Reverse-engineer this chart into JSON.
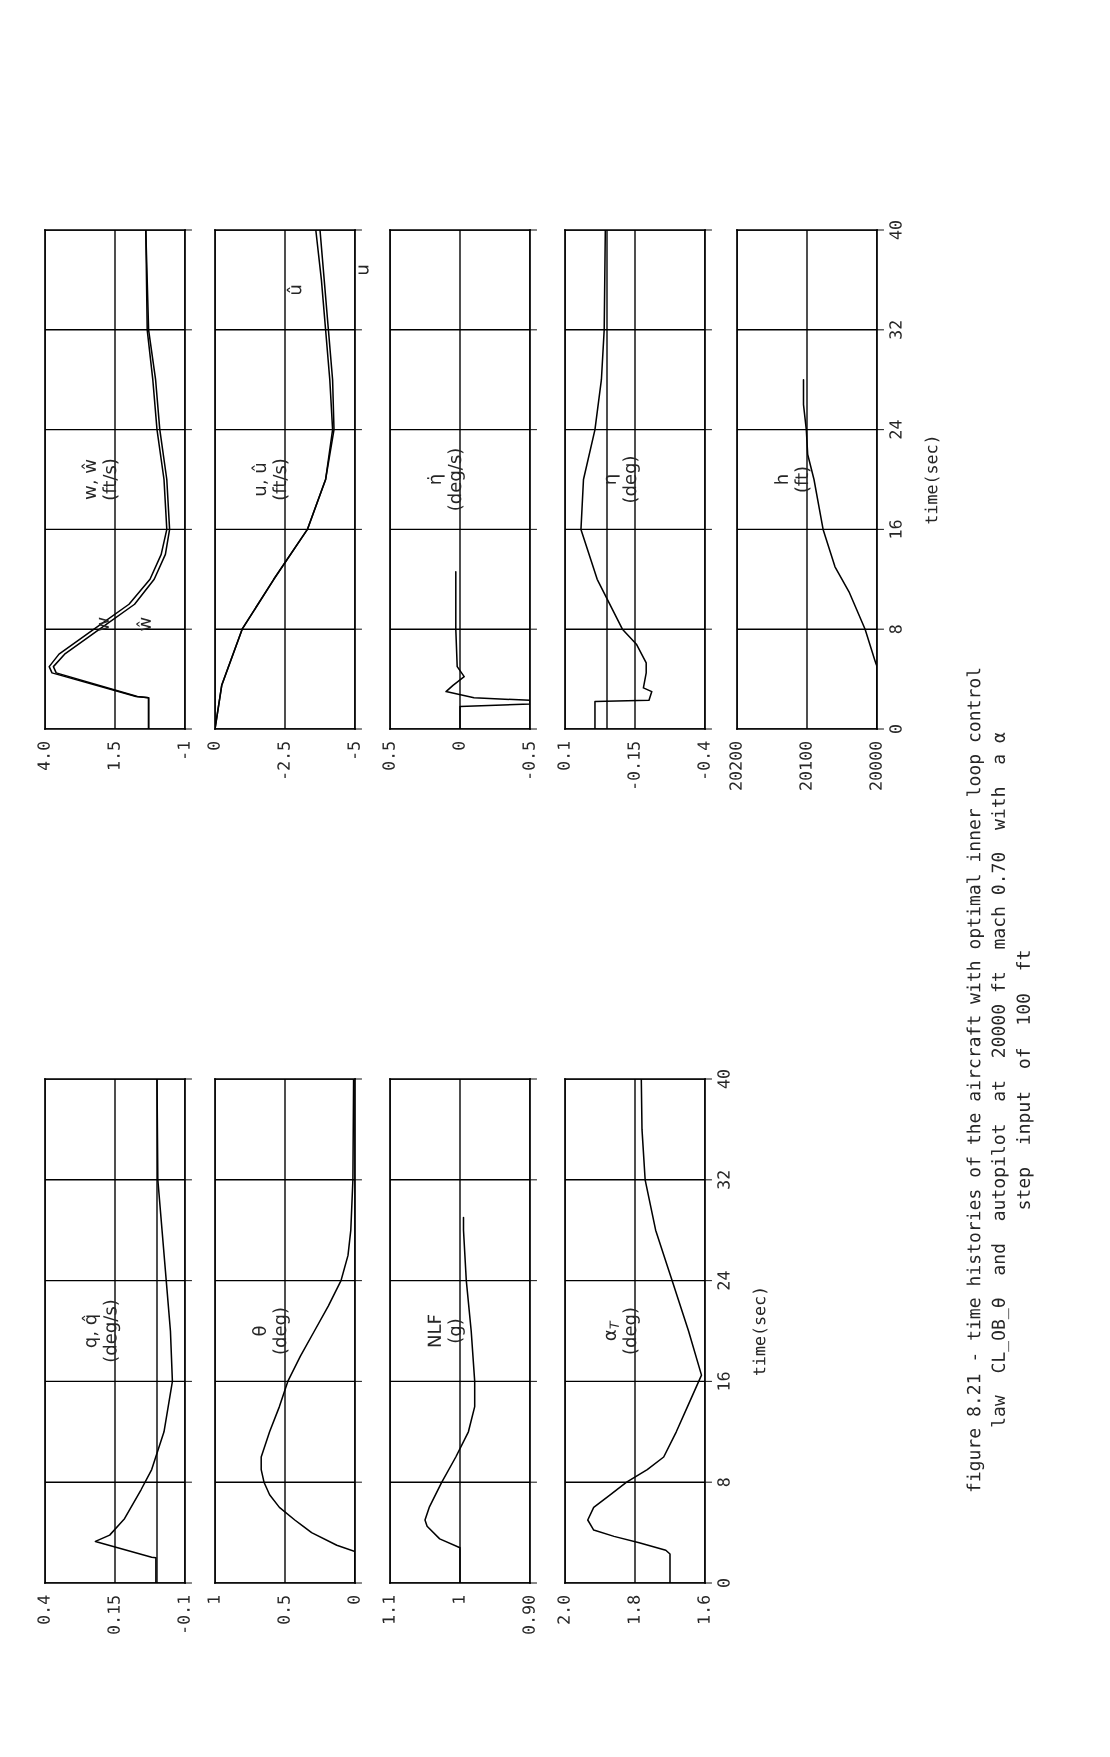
{
  "chart_data": [
    {
      "type": "line",
      "title": "q, q̂\n(deg/s)",
      "xlim": [
        0.4,
        -0.1
      ],
      "xticks": [
        0.4,
        0.15,
        -0.1
      ],
      "ylim": [
        0,
        40
      ],
      "yticks": [
        0,
        8,
        16,
        24,
        32,
        40
      ],
      "grid": true,
      "tick_labels": "x",
      "ref_lines": [
        {
          "axis": "x",
          "value": 0
        }
      ],
      "series": [
        {
          "color": "#000000",
          "values": [
            0,
            2.0,
            2.05,
            3.3,
            3.8,
            5.1,
            7.4,
            9,
            12,
            16,
            20,
            24,
            28,
            32,
            40
          ],
          "x": [
            0.004,
            0.004,
            0.019,
            0.22,
            0.169,
            0.116,
            0.057,
            0.019,
            -0.025,
            -0.055,
            -0.048,
            -0.033,
            -0.018,
            -0.003,
            0.0
          ]
        }
      ],
      "annotations": [
        "figure 8.21 - time histories of the aircraft with optimal inner loop control\nlaw  CL_OB_θ  and  autopilot  at  20000 ft  mach 0.70  with  a α\nstep  input  of  100  ft"
      ]
    },
    {
      "type": "line",
      "title": "θ\n(deg)",
      "xlim": [
        1,
        0
      ],
      "xticks": [
        1,
        0.5,
        0
      ],
      "ylim": [
        0,
        40
      ],
      "yticks": [
        0,
        8,
        16,
        24,
        32,
        40
      ],
      "grid": true,
      "tick_labels": "x",
      "series": [
        {
          "color": "#000000",
          "values": [
            0,
            2.5,
            3,
            4,
            5,
            6,
            7,
            8,
            9,
            10,
            12,
            14,
            16,
            18,
            20,
            22,
            24,
            26,
            28,
            32,
            40
          ],
          "x": [
            0,
            0,
            0.13,
            0.31,
            0.43,
            0.54,
            0.61,
            0.65,
            0.67,
            0.67,
            0.61,
            0.54,
            0.48,
            0.39,
            0.29,
            0.19,
            0.1,
            0.05,
            0.03,
            0.015,
            0.01
          ]
        }
      ]
    },
    {
      "type": "line",
      "title": "NLF\n(g)",
      "xlim": [
        1.1,
        0.9
      ],
      "xticks": [
        1.1,
        1,
        {
          "value": 0.9,
          "label": "0.90"
        }
      ],
      "ylim": [
        0,
        40
      ],
      "yticks": [
        0,
        8,
        16,
        24,
        32,
        40
      ],
      "grid": true,
      "tick_labels": "x",
      "series": [
        {
          "color": "#000000",
          "values": [
            0,
            2.8,
            3.5,
            4.5,
            5,
            6,
            8,
            10,
            12,
            14,
            16,
            20,
            24,
            28,
            29
          ],
          "x": [
            1.0,
            1.0,
            1.029,
            1.047,
            1.05,
            1.044,
            1.026,
            1.006,
            0.988,
            0.979,
            0.979,
            0.984,
            0.991,
            0.995,
            0.995
          ]
        }
      ]
    },
    {
      "type": "line",
      "title": "α$_{T}$\n(deg)",
      "ylabel": "time(sec)",
      "xlim": [
        2.0,
        1.6
      ],
      "xticks": [
        {
          "value": 2.0,
          "label": "2.0"
        },
        1.8,
        1.6
      ],
      "ylim": [
        0,
        40
      ],
      "yticks": [
        0,
        8,
        16,
        24,
        32,
        40
      ],
      "grid": true,
      "series": [
        {
          "color": "#000000",
          "values": [
            0,
            2.3,
            2.6,
            3.2,
            3.7,
            4.2,
            5,
            6,
            7,
            8,
            9,
            10,
            12,
            14,
            16.5,
            20,
            24,
            28,
            32,
            36,
            40
          ],
          "x": [
            1.7,
            1.7,
            1.712,
            1.788,
            1.86,
            1.918,
            1.935,
            1.918,
            1.871,
            1.824,
            1.765,
            1.718,
            1.682,
            1.65,
            1.61,
            1.647,
            1.694,
            1.741,
            1.771,
            1.78,
            1.782
          ]
        }
      ]
    },
    {
      "type": "line",
      "title": "w, ŵ\n(ft/s)",
      "xlim": [
        4.0,
        -1
      ],
      "xticks": [
        {
          "value": 4.0,
          "label": "4.0"
        },
        1.5,
        -1
      ],
      "ylim": [
        0,
        40
      ],
      "yticks": [
        0,
        8,
        16,
        24,
        32,
        40
      ],
      "grid": true,
      "tick_labels": "x",
      "series": [
        {
          "color": "#000000",
          "values": [
            0,
            2.5,
            2.6,
            4.5,
            5,
            6,
            8,
            10,
            12,
            14,
            16,
            20,
            24,
            28,
            32,
            40
          ],
          "x": [
            0.3,
            0.3,
            0.75,
            3.75,
            3.85,
            3.5,
            2.25,
            1.0,
            0.25,
            -0.15,
            -0.35,
            -0.25,
            0,
            0.15,
            0.35,
            0.4
          ]
        },
        {
          "color": "#000000",
          "values": [
            0,
            2.5,
            2.6,
            4.5,
            5,
            6,
            8,
            10,
            12,
            14,
            16,
            20,
            24,
            28,
            32,
            40
          ],
          "x": [
            0.3,
            0.3,
            0.7,
            3.6,
            3.7,
            3.3,
            2.05,
            0.8,
            0.1,
            -0.3,
            -0.45,
            -0.35,
            -0.1,
            0.05,
            0.3,
            0.4
          ]
        }
      ],
      "annotations": [
        "w",
        "ŵ"
      ]
    },
    {
      "type": "line",
      "title": "u, û\n(ft/s)",
      "xlim": [
        0,
        -5
      ],
      "xticks": [
        0,
        -2.5,
        -5
      ],
      "ylim": [
        0,
        40
      ],
      "yticks": [
        0,
        8,
        16,
        24,
        32,
        40
      ],
      "grid": true,
      "tick_labels": "x",
      "series": [
        {
          "color": "#000000",
          "values": [
            0,
            3.5,
            8,
            12,
            16,
            20,
            24,
            28,
            32,
            36,
            40
          ],
          "x": [
            0,
            -0.24,
            -0.97,
            -2.1,
            -3.3,
            -3.95,
            -4.2,
            -4.1,
            -3.95,
            -3.8,
            -3.6
          ]
        },
        {
          "color": "#000000",
          "values": [
            0,
            3.5,
            8,
            12,
            16,
            20,
            24,
            28,
            32,
            36,
            40
          ],
          "x": [
            0,
            -0.24,
            -0.97,
            -2.1,
            -3.3,
            -3.95,
            -4.25,
            -4.2,
            -4.05,
            -3.9,
            -3.75
          ]
        }
      ],
      "annotations": [
        "û",
        "u"
      ]
    },
    {
      "type": "line",
      "title": "η̇\n(deg/s)",
      "xlim": [
        0.5,
        -0.5
      ],
      "xticks": [
        0.5,
        0,
        -0.5
      ],
      "ylim": [
        0,
        40
      ],
      "yticks": [
        0,
        8,
        16,
        24,
        32,
        40
      ],
      "grid": true,
      "tick_labels": "x",
      "series": [
        {
          "color": "#000000",
          "values": [
            0,
            1.8,
            2.0,
            2.3,
            2.5,
            3.0,
            3.5,
            4.2,
            5,
            8,
            12.6
          ],
          "x": [
            0,
            0,
            -0.5,
            -0.5,
            -0.1,
            0.1,
            0.05,
            -0.03,
            0.02,
            0.03,
            0.03
          ]
        }
      ]
    },
    {
      "type": "line",
      "title": "η\n(deg)",
      "xlim": [
        0.1,
        -0.4
      ],
      "xticks": [
        0.1,
        -0.15,
        -0.4
      ],
      "ylim": [
        0,
        40
      ],
      "yticks": [
        0,
        8,
        16,
        24,
        32,
        40
      ],
      "grid": true,
      "tick_labels": "x",
      "ref_lines": [
        {
          "axis": "x",
          "value": -0.05
        }
      ],
      "series": [
        {
          "color": "#000000",
          "values": [
            0,
            2.2,
            2.3,
            3,
            3.3,
            4.5,
            5.3,
            6.8,
            8,
            12,
            16,
            20,
            24,
            28,
            32,
            40
          ],
          "x": [
            -0.007,
            -0.007,
            -0.2,
            -0.21,
            -0.18,
            -0.19,
            -0.19,
            -0.155,
            -0.105,
            -0.015,
            0.043,
            0.034,
            -0.007,
            -0.03,
            -0.04,
            -0.044
          ]
        }
      ]
    },
    {
      "type": "line",
      "title": "h\n(ft)",
      "ylabel": "time(sec)",
      "xlim": [
        20200,
        20000
      ],
      "xticks": [
        20200,
        20100,
        20000
      ],
      "ylim": [
        0,
        40
      ],
      "yticks": [
        0,
        8,
        16,
        24,
        32,
        40
      ],
      "grid": true,
      "series": [
        {
          "color": "#000000",
          "values": [
            0,
            5,
            5.5,
            8,
            11,
            13,
            16,
            20,
            22,
            24,
            26,
            28
          ],
          "x": [
            20000,
            20000,
            20003,
            20017,
            20040,
            20060,
            20077,
            20090,
            20099,
            20101,
            20105,
            20105
          ]
        }
      ]
    }
  ]
}
